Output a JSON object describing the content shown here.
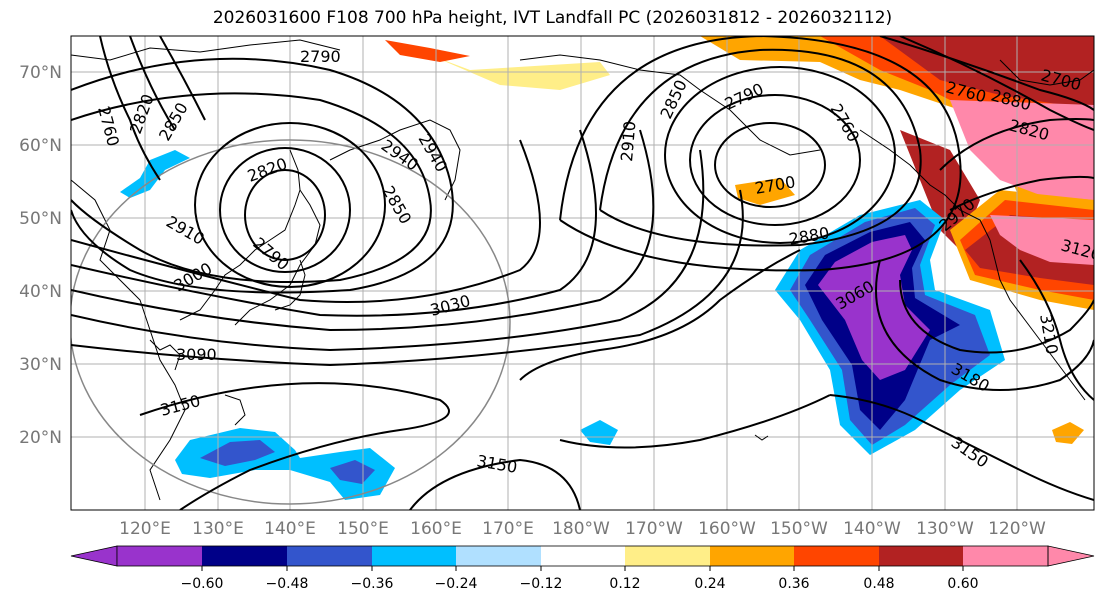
{
  "title": "2026031600 F108 700 hPa height, IVT Landfall PC (2026031812 - 2026032112)",
  "map": {
    "lat_labels": [
      "70°N",
      "60°N",
      "50°N",
      "40°N",
      "30°N",
      "20°N"
    ],
    "lon_labels": [
      "120°E",
      "130°E",
      "140°E",
      "150°E",
      "160°E",
      "170°E",
      "180°W",
      "170°W",
      "160°W",
      "150°W",
      "140°W",
      "130°W",
      "120°W"
    ],
    "contour_labels": [
      "2790",
      "2760",
      "2820",
      "2850",
      "2880",
      "2940",
      "2820",
      "2850",
      "2910",
      "2790",
      "3000",
      "3030",
      "3090",
      "3150",
      "3150",
      "2910",
      "2850",
      "2790",
      "2700",
      "2880",
      "3060",
      "2760",
      "2820",
      "2970",
      "3180",
      "3150",
      "3210",
      "2700",
      "2760",
      "3120",
      "2940"
    ],
    "colors": {
      "purple": "#9933cc",
      "navy": "#000088",
      "blue": "#3355cc",
      "cyan": "#00bfff",
      "lightblue": "#b0e0ff",
      "yellow": "#ffee88",
      "orange": "#ffa500",
      "redorange": "#ff4500",
      "darkred": "#b22222",
      "pink": "#ff88aa"
    }
  },
  "colorbar": {
    "ticks": [
      "−0.60",
      "−0.48",
      "−0.36",
      "−0.24",
      "−0.12",
      "0.12",
      "0.24",
      "0.36",
      "0.48",
      "0.60"
    ],
    "colors": [
      "#9933cc",
      "#000088",
      "#3355cc",
      "#00bfff",
      "#b0e0ff",
      "#ffffff",
      "#ffee88",
      "#ffa500",
      "#ff4500",
      "#b22222",
      "#ff88aa"
    ]
  }
}
